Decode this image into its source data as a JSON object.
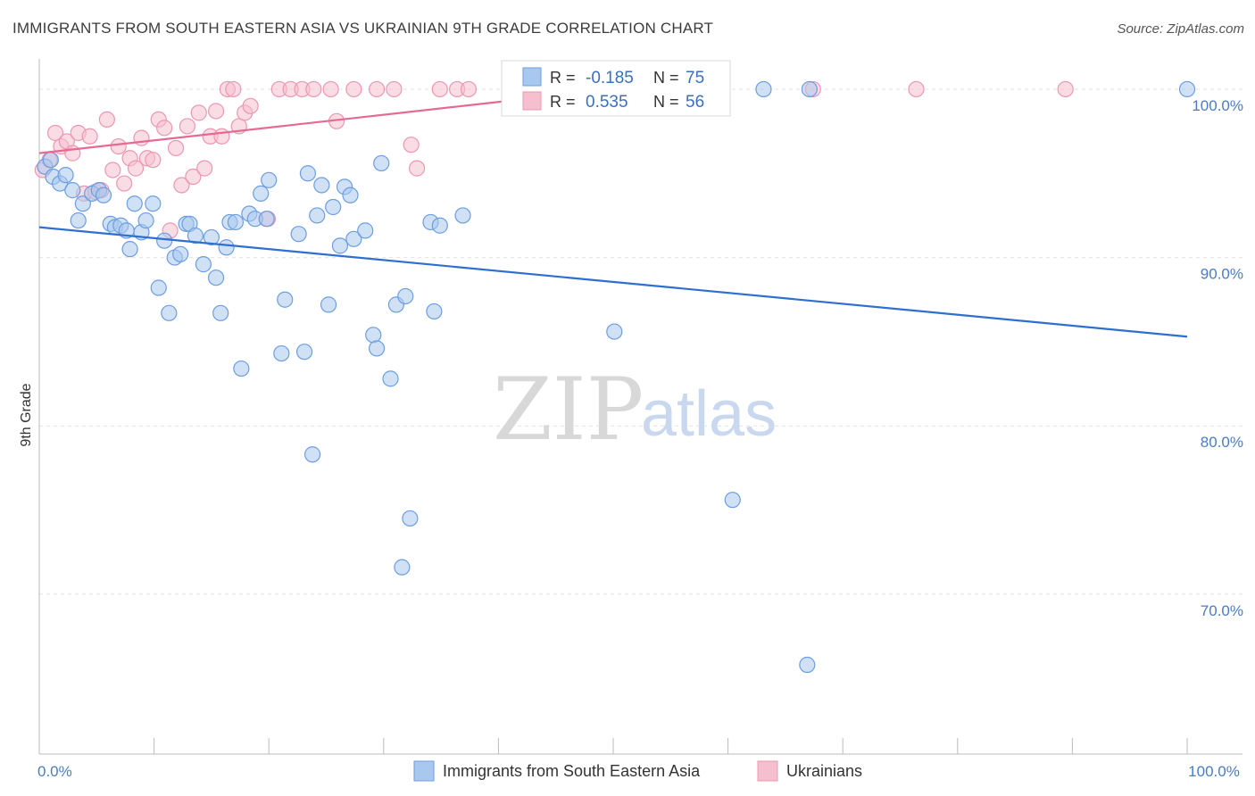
{
  "header": {
    "title": "IMMIGRANTS FROM SOUTH EASTERN ASIA VS UKRAINIAN 9TH GRADE CORRELATION CHART",
    "source": "Source: ZipAtlas.com"
  },
  "watermark": {
    "zip": "ZIP",
    "atlas": "atlas"
  },
  "colors": {
    "blue_fill": "#a9c8ef",
    "blue_stroke": "#6b9ee0",
    "blue_line": "#2f6fcf",
    "pink_fill": "#f6bfd0",
    "pink_stroke": "#ec97b2",
    "pink_line": "#e46a92",
    "grid": "#e3e3e3",
    "tick_text": "#4a7cc4"
  },
  "chart_data": {
    "type": "scatter",
    "ylabel": "9th Grade",
    "xlabel": "",
    "xlim": [
      0,
      100
    ],
    "ylim": [
      60.5,
      101.8
    ],
    "x_tick_labels": [
      {
        "value": 0,
        "label": "0.0%"
      },
      {
        "value": 100,
        "label": "100.0%"
      }
    ],
    "y_ticks": [
      {
        "value": 100,
        "label": "100.0%"
      },
      {
        "value": 90,
        "label": "90.0%"
      },
      {
        "value": 80,
        "label": "80.0%"
      },
      {
        "value": 70,
        "label": "70.0%"
      }
    ],
    "grid": true,
    "legend_placement": "top-center",
    "stats": [
      {
        "r_label": "R =",
        "r_value": "-0.185",
        "n_label": "N =",
        "n_value": "75"
      },
      {
        "r_label": "R =",
        "r_value": "0.535",
        "n_label": "N =",
        "n_value": "56"
      }
    ],
    "series": [
      {
        "name": "Immigrants from South Eastern Asia",
        "color": "#a9c8ef",
        "trend": {
          "x": [
            0,
            100
          ],
          "y": [
            91.8,
            85.3
          ]
        },
        "points": [
          [
            0.5,
            95.4
          ],
          [
            1.2,
            94.8
          ],
          [
            1.8,
            94.4
          ],
          [
            2.3,
            94.9
          ],
          [
            2.9,
            94.0
          ],
          [
            3.4,
            92.2
          ],
          [
            3.8,
            93.2
          ],
          [
            4.6,
            93.8
          ],
          [
            5.2,
            94.0
          ],
          [
            5.6,
            93.7
          ],
          [
            6.2,
            92.0
          ],
          [
            6.6,
            91.8
          ],
          [
            7.1,
            91.9
          ],
          [
            7.6,
            91.6
          ],
          [
            7.9,
            90.5
          ],
          [
            8.9,
            91.5
          ],
          [
            8.3,
            93.2
          ],
          [
            9.3,
            92.2
          ],
          [
            9.9,
            93.2
          ],
          [
            10.4,
            88.2
          ],
          [
            10.9,
            91.0
          ],
          [
            11.3,
            86.7
          ],
          [
            11.8,
            90.0
          ],
          [
            12.3,
            90.2
          ],
          [
            12.8,
            92.0
          ],
          [
            13.1,
            92.0
          ],
          [
            13.6,
            91.3
          ],
          [
            14.3,
            89.6
          ],
          [
            15.0,
            91.2
          ],
          [
            15.4,
            88.8
          ],
          [
            15.8,
            86.7
          ],
          [
            16.3,
            90.6
          ],
          [
            16.6,
            92.1
          ],
          [
            17.1,
            92.1
          ],
          [
            17.6,
            83.4
          ],
          [
            18.3,
            92.6
          ],
          [
            18.8,
            92.3
          ],
          [
            19.3,
            93.8
          ],
          [
            19.8,
            92.3
          ],
          [
            20.0,
            94.6
          ],
          [
            21.1,
            84.3
          ],
          [
            21.4,
            87.5
          ],
          [
            22.6,
            91.4
          ],
          [
            23.1,
            84.4
          ],
          [
            23.4,
            95.0
          ],
          [
            23.8,
            78.3
          ],
          [
            24.2,
            92.5
          ],
          [
            24.6,
            94.3
          ],
          [
            25.2,
            87.2
          ],
          [
            25.6,
            93.0
          ],
          [
            26.2,
            90.7
          ],
          [
            26.6,
            94.2
          ],
          [
            27.1,
            93.7
          ],
          [
            27.4,
            91.1
          ],
          [
            28.4,
            91.6
          ],
          [
            29.1,
            85.4
          ],
          [
            29.4,
            84.6
          ],
          [
            29.8,
            95.6
          ],
          [
            30.6,
            82.8
          ],
          [
            31.1,
            87.2
          ],
          [
            31.9,
            87.7
          ],
          [
            32.3,
            74.5
          ],
          [
            31.6,
            71.6
          ],
          [
            34.1,
            92.1
          ],
          [
            34.4,
            86.8
          ],
          [
            34.9,
            91.9
          ],
          [
            36.9,
            92.5
          ],
          [
            43.6,
            100.0
          ],
          [
            50.1,
            85.6
          ],
          [
            60.4,
            75.6
          ],
          [
            63.1,
            100.0
          ],
          [
            67.1,
            100.0
          ],
          [
            66.9,
            65.8
          ],
          [
            100.0,
            100.0
          ],
          [
            1.0,
            95.8
          ]
        ]
      },
      {
        "name": "Ukrainians",
        "color": "#f6bfd0",
        "trend": {
          "x": [
            0,
            50
          ],
          "y": [
            96.2,
            100.0
          ]
        },
        "points": [
          [
            0.3,
            95.2
          ],
          [
            0.9,
            95.8
          ],
          [
            1.4,
            97.4
          ],
          [
            1.9,
            96.6
          ],
          [
            2.4,
            96.9
          ],
          [
            2.9,
            96.2
          ],
          [
            3.4,
            97.4
          ],
          [
            3.9,
            93.8
          ],
          [
            4.4,
            97.2
          ],
          [
            4.9,
            93.9
          ],
          [
            5.4,
            94.0
          ],
          [
            5.9,
            98.2
          ],
          [
            6.4,
            95.2
          ],
          [
            6.9,
            96.6
          ],
          [
            7.4,
            94.4
          ],
          [
            7.9,
            95.9
          ],
          [
            8.4,
            95.3
          ],
          [
            8.9,
            97.1
          ],
          [
            9.4,
            95.9
          ],
          [
            9.9,
            95.8
          ],
          [
            10.4,
            98.2
          ],
          [
            10.9,
            97.7
          ],
          [
            11.4,
            91.6
          ],
          [
            11.9,
            96.5
          ],
          [
            12.4,
            94.3
          ],
          [
            12.9,
            97.8
          ],
          [
            13.4,
            94.8
          ],
          [
            13.9,
            98.6
          ],
          [
            14.4,
            95.3
          ],
          [
            14.9,
            97.2
          ],
          [
            15.4,
            98.7
          ],
          [
            15.9,
            97.2
          ],
          [
            16.4,
            100.0
          ],
          [
            16.9,
            100.0
          ],
          [
            17.4,
            97.8
          ],
          [
            17.9,
            98.6
          ],
          [
            18.4,
            99.0
          ],
          [
            19.9,
            92.3
          ],
          [
            20.9,
            100.0
          ],
          [
            21.9,
            100.0
          ],
          [
            22.9,
            100.0
          ],
          [
            23.9,
            100.0
          ],
          [
            25.9,
            98.1
          ],
          [
            25.4,
            100.0
          ],
          [
            27.4,
            100.0
          ],
          [
            29.4,
            100.0
          ],
          [
            30.9,
            100.0
          ],
          [
            32.4,
            96.7
          ],
          [
            32.9,
            95.3
          ],
          [
            34.9,
            100.0
          ],
          [
            36.4,
            100.0
          ],
          [
            37.4,
            100.0
          ],
          [
            47.4,
            100.0
          ],
          [
            67.4,
            100.0
          ],
          [
            76.4,
            100.0
          ],
          [
            89.4,
            100.0
          ]
        ]
      }
    ]
  }
}
